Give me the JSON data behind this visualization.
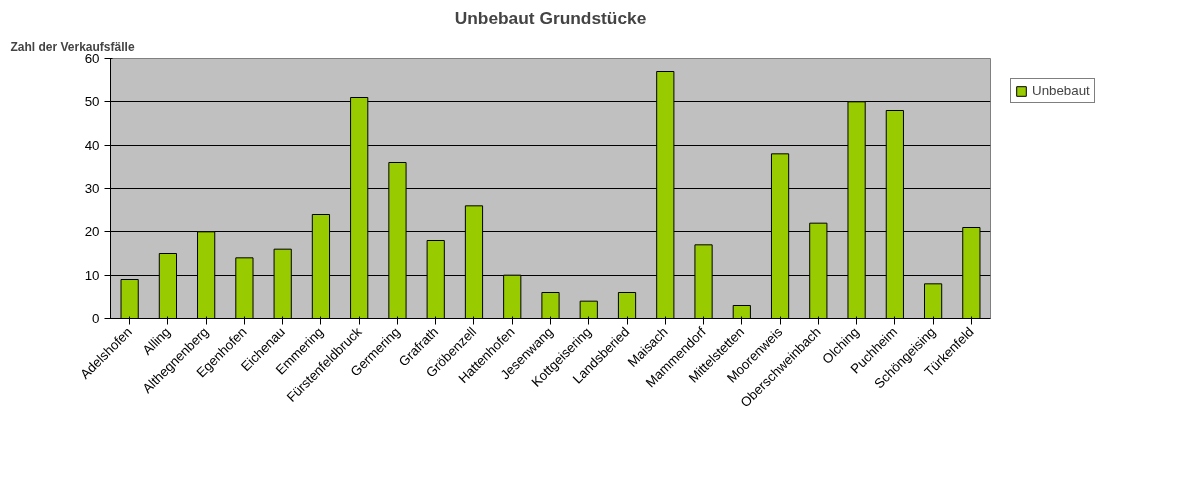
{
  "chart_data": {
    "type": "bar",
    "title": "Unbebaut Grundstücke",
    "ylabel": "Zahl der Verkaufsfälle",
    "categories": [
      "Adelshofen",
      "Alling",
      "Althegnenberg",
      "Egenhofen",
      "Eichenau",
      "Emmering",
      "Fürstenfeldbruck",
      "Germering",
      "Grafrath",
      "Gröbenzell",
      "Hattenhofen",
      "Jesenwang",
      "Kottgeisering",
      "Landsberied",
      "Maisach",
      "Mammendorf",
      "Mittelstetten",
      "Moorenweis",
      "Oberschweinbach",
      "Olching",
      "Puchheim",
      "Schöngeising",
      "Türkenfeld"
    ],
    "series": [
      {
        "name": "Unbebaut",
        "color": "#99cc00",
        "values": [
          9,
          15,
          20,
          14,
          16,
          24,
          51,
          36,
          18,
          26,
          10,
          6,
          4,
          6,
          57,
          17,
          3,
          38,
          22,
          50,
          48,
          8,
          21
        ]
      }
    ],
    "ylim": [
      0,
      60
    ],
    "yticks": [
      0,
      10,
      20,
      30,
      40,
      50,
      60
    ],
    "grid": "y",
    "legend": "right"
  }
}
